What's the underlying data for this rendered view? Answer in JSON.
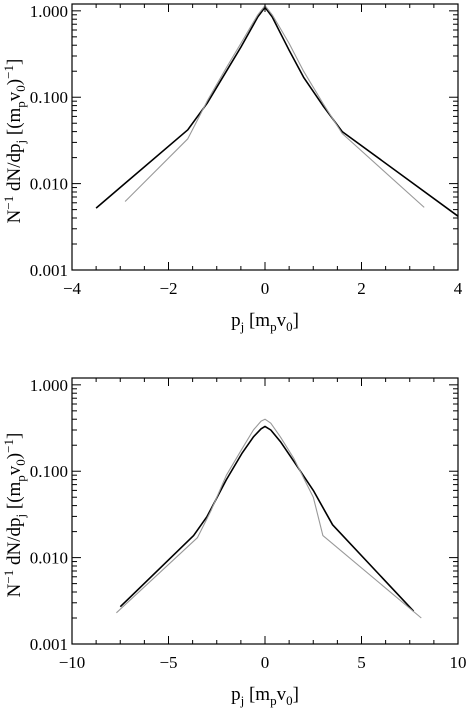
{
  "chart_data": [
    {
      "type": "line",
      "title": "",
      "xlabel_main": "p",
      "xlabel_sub": "j",
      "xlabel_rest_open": "  [m",
      "xlabel_rest_sub1": "p",
      "xlabel_rest_mid": "v",
      "xlabel_rest_sub2": "0",
      "xlabel_rest_close": "]",
      "ylabel_parts": {
        "n": "N",
        "sup1": "−1",
        "mid": " dN/dp",
        "sub1": "j",
        "open": "  [(m",
        "sub2": "p",
        "v": "v",
        "sub3": "0",
        "close": ")",
        "sup2": "−1",
        "end": "]"
      },
      "xlim": [
        -4,
        4
      ],
      "ylim": [
        0.001,
        1.2
      ],
      "yscale": "log",
      "x_ticks": [
        -4,
        -2,
        0,
        2,
        4
      ],
      "x_tick_labels": [
        "−4",
        "−2",
        "0",
        "2",
        "4"
      ],
      "y_ticks": [
        0.001,
        0.01,
        0.1,
        1.0
      ],
      "y_tick_labels": [
        "0.001",
        "0.010",
        "0.100",
        "1.000"
      ],
      "grid": false,
      "series": [
        {
          "color": "#000000",
          "x": [
            -3.5,
            -1.6,
            -1.2,
            -0.8,
            -0.5,
            -0.3,
            -0.15,
            0.0,
            0.15,
            0.3,
            0.5,
            0.8,
            1.2,
            1.6,
            4.0
          ],
          "y": [
            0.0052,
            0.042,
            0.085,
            0.2,
            0.38,
            0.6,
            0.85,
            1.1,
            0.85,
            0.58,
            0.35,
            0.17,
            0.08,
            0.04,
            0.0042
          ]
        },
        {
          "color": "#999999",
          "x": [
            -2.9,
            -1.6,
            -1.2,
            -0.8,
            -0.5,
            -0.3,
            -0.15,
            0.0,
            0.15,
            0.3,
            0.5,
            0.8,
            1.2,
            1.6,
            3.3
          ],
          "y": [
            0.0062,
            0.033,
            0.09,
            0.22,
            0.42,
            0.65,
            0.9,
            1.15,
            0.9,
            0.65,
            0.42,
            0.2,
            0.085,
            0.038,
            0.0053
          ]
        }
      ]
    },
    {
      "type": "line",
      "title": "",
      "xlabel_main": "p",
      "xlabel_sub": "j",
      "xlabel_rest_open": "  [m",
      "xlabel_rest_sub1": "p",
      "xlabel_rest_mid": "v",
      "xlabel_rest_sub2": "0",
      "xlabel_rest_close": "]",
      "ylabel_parts": {
        "n": "N",
        "sup1": "−1",
        "mid": " dN/dp",
        "sub1": "j",
        "open": "  [(m",
        "sub2": "p",
        "v": "v",
        "sub3": "0",
        "close": ")",
        "sup2": "−1",
        "end": "]"
      },
      "xlim": [
        -10,
        10
      ],
      "ylim": [
        0.001,
        1.2
      ],
      "yscale": "log",
      "x_ticks": [
        -10,
        -5,
        0,
        5,
        10
      ],
      "x_tick_labels": [
        "−10",
        "−5",
        "0",
        "5",
        "10"
      ],
      "y_ticks": [
        0.001,
        0.01,
        0.1,
        1.0
      ],
      "y_tick_labels": [
        "0.001",
        "0.010",
        "0.100",
        "1.000"
      ],
      "grid": false,
      "series": [
        {
          "color": "#000000",
          "x": [
            -7.5,
            -3.7,
            -3.0,
            -2.0,
            -1.2,
            -0.6,
            -0.2,
            0.0,
            0.3,
            0.8,
            1.5,
            2.5,
            3.5,
            7.7
          ],
          "y": [
            0.0027,
            0.018,
            0.03,
            0.08,
            0.16,
            0.25,
            0.31,
            0.33,
            0.3,
            0.22,
            0.13,
            0.06,
            0.024,
            0.0024
          ]
        },
        {
          "color": "#999999",
          "x": [
            -7.7,
            -3.5,
            -2.8,
            -2.0,
            -1.2,
            -0.6,
            -0.2,
            0.0,
            0.3,
            0.8,
            1.5,
            2.5,
            3.0,
            8.1
          ],
          "y": [
            0.0023,
            0.017,
            0.035,
            0.09,
            0.18,
            0.3,
            0.38,
            0.4,
            0.36,
            0.25,
            0.14,
            0.05,
            0.018,
            0.002
          ]
        }
      ]
    }
  ]
}
